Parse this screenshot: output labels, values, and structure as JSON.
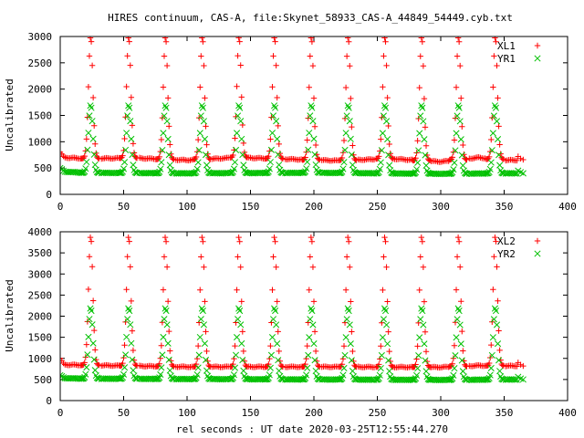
{
  "chart_data": {
    "title": "HIRES continuum, CAS-A, file:Skynet_58933_CAS-A_44849_54449.cyb.txt",
    "xlabel": "rel seconds : UT date 2020-03-25T12:55:44.270",
    "colors": {
      "XL": "#ff0000",
      "YR": "#00c000"
    },
    "panels": [
      {
        "type": "scatter",
        "ylabel": "Uncalibrated",
        "xlim": [
          0,
          400
        ],
        "ylim": [
          0,
          3000
        ],
        "xticks": [
          0,
          50,
          100,
          150,
          200,
          250,
          300,
          350,
          400
        ],
        "yticks": [
          0,
          500,
          1000,
          1500,
          2000,
          2500,
          3000
        ],
        "grid": false,
        "legend": "top-right",
        "pulse_centers": [
          24,
          54,
          83,
          112,
          141,
          169,
          198,
          227,
          256,
          285,
          314,
          343
        ],
        "series": [
          {
            "name": "XL1",
            "marker": "+",
            "baseline": [
              [
                0,
                800
              ],
              [
                3,
                700
              ],
              [
                20,
                680
              ],
              [
                60,
                690
              ],
              [
                100,
                650
              ],
              [
                140,
                700
              ],
              [
                180,
                670
              ],
              [
                220,
                640
              ],
              [
                260,
                680
              ],
              [
                300,
                620
              ],
              [
                330,
                700
              ],
              [
                350,
                650
              ],
              [
                360,
                650
              ]
            ],
            "peak": 3000,
            "tail": [
              [
                361,
                720
              ],
              [
                363,
                680
              ],
              [
                365,
                660
              ]
            ]
          },
          {
            "name": "YR1",
            "marker": "x",
            "baseline": [
              [
                0,
                500
              ],
              [
                3,
                430
              ],
              [
                20,
                410
              ],
              [
                100,
                400
              ],
              [
                200,
                410
              ],
              [
                300,
                390
              ],
              [
                350,
                400
              ],
              [
                360,
                400
              ]
            ],
            "peak": 1700,
            "tail": [
              [
                361,
                450
              ],
              [
                363,
                420
              ],
              [
                365,
                400
              ]
            ]
          }
        ]
      },
      {
        "type": "scatter",
        "ylabel": "Uncalibrated",
        "xlim": [
          0,
          400
        ],
        "ylim": [
          0,
          4000
        ],
        "xticks": [
          0,
          50,
          100,
          150,
          200,
          250,
          300,
          350,
          400
        ],
        "yticks": [
          0,
          500,
          1000,
          1500,
          2000,
          2500,
          3000,
          3500,
          4000
        ],
        "grid": false,
        "legend": "top-right",
        "pulse_centers": [
          24,
          54,
          83,
          112,
          141,
          169,
          198,
          227,
          256,
          285,
          314,
          343
        ],
        "series": [
          {
            "name": "XL2",
            "marker": "+",
            "baseline": [
              [
                0,
                1000
              ],
              [
                3,
                850
              ],
              [
                20,
                840
              ],
              [
                100,
                800
              ],
              [
                200,
                800
              ],
              [
                300,
                790
              ],
              [
                330,
                830
              ],
              [
                360,
                820
              ]
            ],
            "peak": 3900,
            "tail": [
              [
                361,
                900
              ],
              [
                363,
                850
              ],
              [
                365,
                820
              ]
            ]
          },
          {
            "name": "YR2",
            "marker": "x",
            "baseline": [
              [
                0,
                600
              ],
              [
                3,
                530
              ],
              [
                20,
                520
              ],
              [
                100,
                510
              ],
              [
                200,
                500
              ],
              [
                300,
                490
              ],
              [
                360,
                500
              ]
            ],
            "peak": 2200,
            "tail": [
              [
                361,
                560
              ],
              [
                363,
                520
              ],
              [
                365,
                500
              ]
            ]
          }
        ]
      }
    ]
  }
}
